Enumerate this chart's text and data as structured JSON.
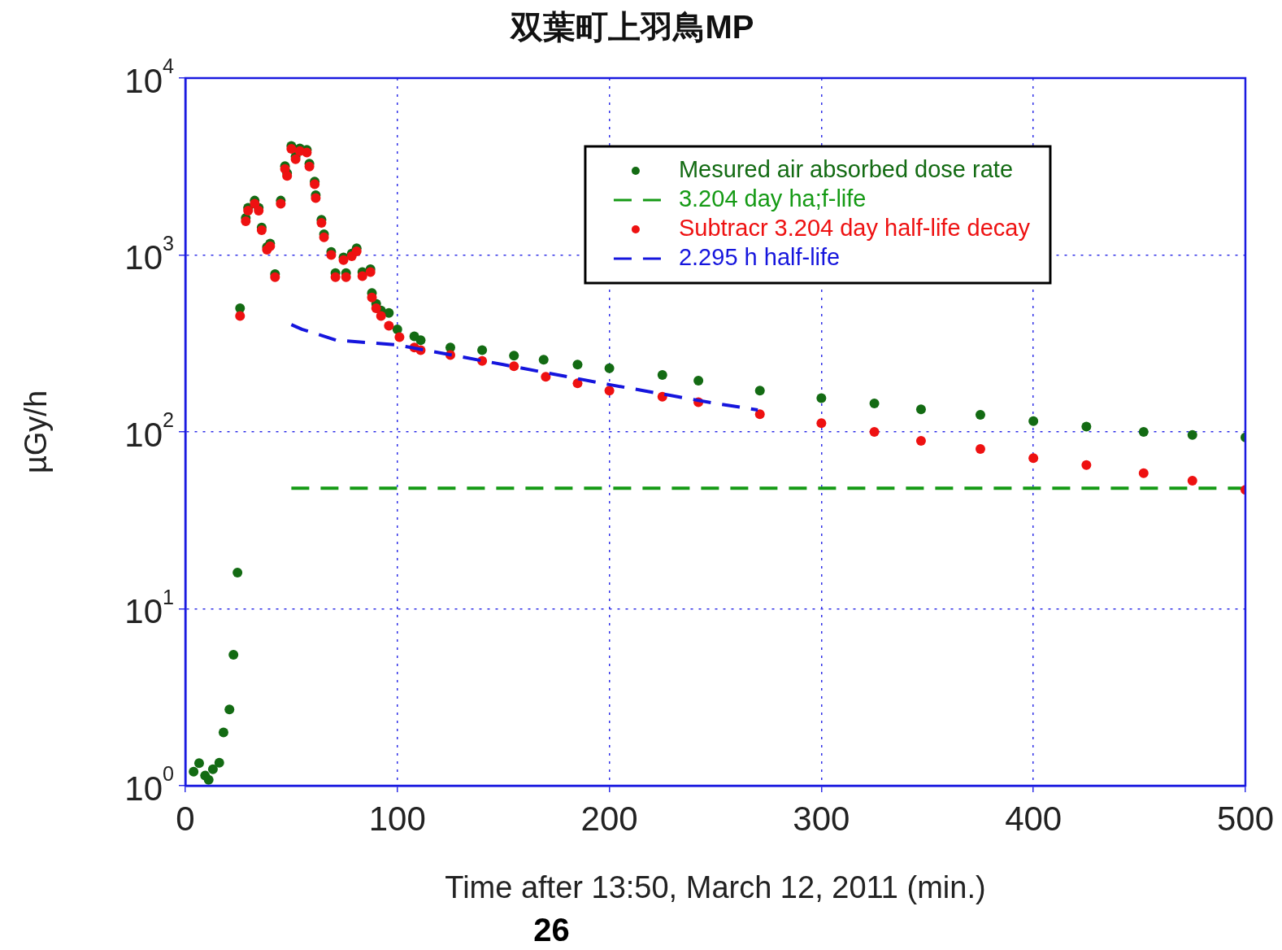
{
  "chart_data": {
    "type": "scatter",
    "title": "双葉町上羽鳥MP",
    "xlabel": "Time after 13:50, March 12, 2011 (min.)",
    "ylabel": "µGy/h",
    "annotations": [
      "26"
    ],
    "log": "y",
    "grid": true,
    "legend": "top right",
    "marker": "circle",
    "xlim": [
      0,
      500
    ],
    "xticks": [
      0,
      100,
      200,
      300,
      400,
      500
    ],
    "ylim": [
      1,
      10000
    ],
    "yticks": [
      {
        "value": 1,
        "label": "10$^{0}$"
      },
      {
        "value": 10,
        "label": "10$^{1}$"
      },
      {
        "value": 100,
        "label": "10$^{2}$"
      },
      {
        "value": 1000,
        "label": "10$^{3}$"
      },
      {
        "value": 10000,
        "label": "10$^{4}$"
      }
    ],
    "series": [
      {
        "name": "Mesured air absorbed dose rate",
        "type": "scatter",
        "color": "#136b13",
        "x": [
          3.9,
          6.5,
          9.3,
          11,
          13,
          16,
          18,
          20.8,
          22.7,
          24.6,
          25.8,
          28.5,
          29.6,
          32.7,
          34.6,
          36,
          38.5,
          40,
          42.3,
          45,
          47,
          48,
          50,
          52,
          54,
          57.3,
          58.5,
          61,
          61.5,
          64.2,
          65.4,
          68.8,
          70.8,
          74.6,
          75.8,
          78.5,
          80.8,
          83.5,
          87.3,
          88,
          90,
          92.3,
          96,
          100,
          108,
          111,
          125,
          140,
          155,
          169,
          185,
          200,
          225,
          242,
          271,
          300,
          325,
          347,
          375,
          400,
          425,
          452,
          475,
          500
        ],
        "values": [
          1.2,
          1.34,
          1.14,
          1.08,
          1.24,
          1.35,
          2.0,
          2.7,
          5.5,
          16,
          500,
          1620,
          1850,
          2030,
          1850,
          1430,
          1110,
          1160,
          780,
          2030,
          3180,
          2900,
          4130,
          3600,
          4000,
          3930,
          3280,
          2600,
          2180,
          1580,
          1310,
          1040,
          790,
          970,
          790,
          1020,
          1090,
          800,
          830,
          610,
          530,
          485,
          470,
          380,
          347,
          330,
          300,
          290,
          270,
          256,
          240,
          229,
          210,
          195,
          171,
          155,
          145,
          134,
          125,
          115,
          107,
          100,
          96,
          93
        ]
      },
      {
        "name": "3.204 day ha;f-life",
        "type": "line",
        "line_style": "dashed",
        "marker": "none",
        "color": "#159a15",
        "x": [
          50,
          500
        ],
        "values": [
          48,
          48
        ]
      },
      {
        "name": "Subtracr 3.204 day half-life decay",
        "type": "scatter",
        "color": "#ee1111",
        "x": [
          25.8,
          28.5,
          29.6,
          32.7,
          34.6,
          36,
          38.5,
          40,
          42.3,
          45,
          47,
          48,
          50,
          52,
          54,
          57.3,
          58.5,
          61,
          61.5,
          64.2,
          65.4,
          68.8,
          70.8,
          74.6,
          75.8,
          78.5,
          80.8,
          83.5,
          87.3,
          88,
          90,
          92.3,
          96,
          101,
          108,
          111,
          125,
          140,
          155,
          170,
          185,
          200,
          225,
          242,
          271,
          300,
          325,
          347,
          375,
          400,
          425,
          452,
          475,
          500
        ],
        "values": [
          452,
          1550,
          1780,
          1950,
          1780,
          1380,
          1070,
          1120,
          750,
          1950,
          3060,
          2800,
          3980,
          3480,
          3870,
          3800,
          3160,
          2510,
          2100,
          1520,
          1260,
          1000,
          750,
          935,
          750,
          985,
          1050,
          760,
          800,
          575,
          500,
          452,
          398,
          343,
          300,
          290,
          272,
          252,
          235,
          205,
          188,
          171,
          158,
          147,
          126,
          112,
          100,
          89,
          80,
          71,
          65,
          58.5,
          53,
          47
        ]
      },
      {
        "name": "2.295 h half-life",
        "type": "line",
        "line_style": "dashed",
        "marker": "none",
        "color": "#1515dd",
        "x": [
          50,
          55,
          63,
          71,
          100,
          150,
          200,
          250,
          270
        ],
        "values": [
          404,
          380,
          355,
          330,
          310,
          240,
          185,
          145,
          133
        ]
      }
    ]
  }
}
